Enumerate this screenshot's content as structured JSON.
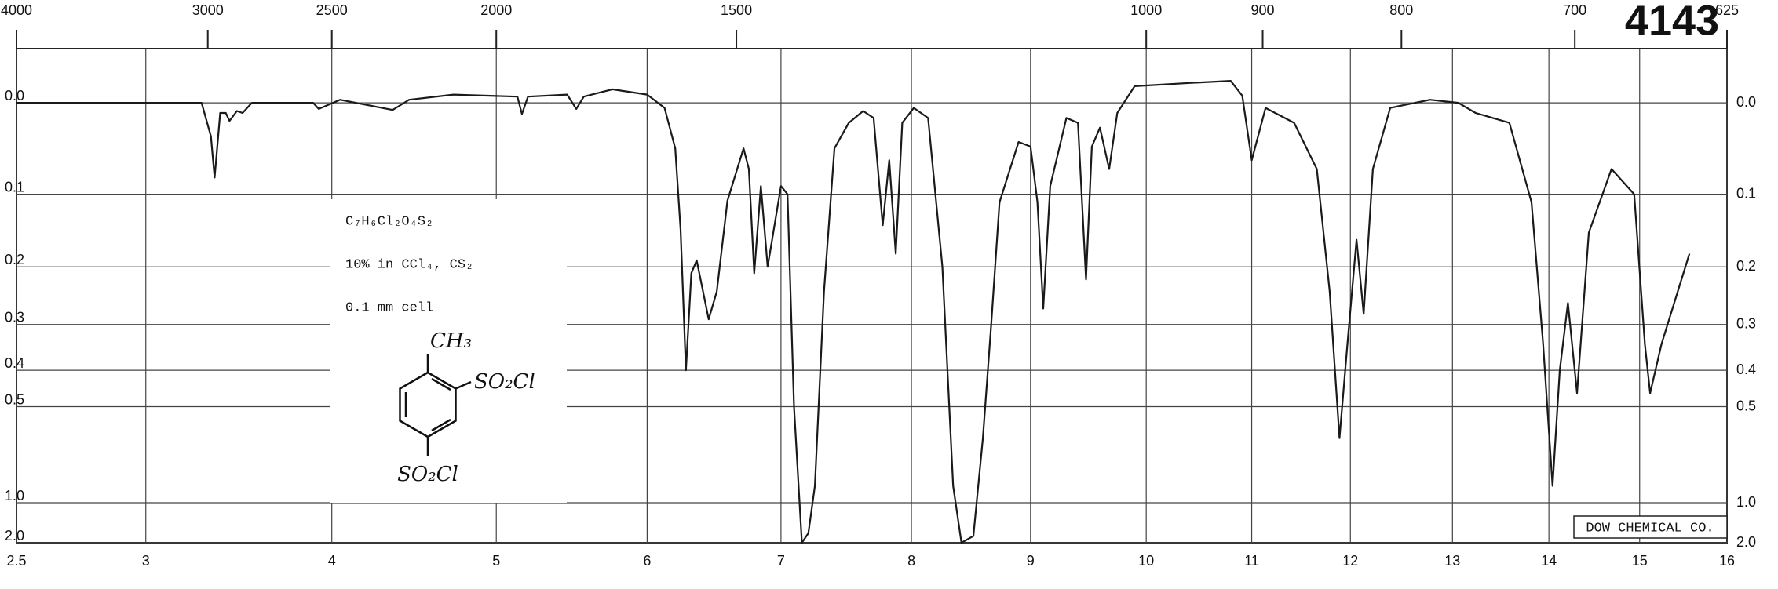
{
  "chart_data": {
    "type": "line",
    "x": [
      2.5,
      2.88,
      3.3,
      3.35,
      3.37,
      3.4,
      3.43,
      3.45,
      3.49,
      3.52,
      3.57,
      3.9,
      3.93,
      4.05,
      4.37,
      4.47,
      4.74,
      5.14,
      5.17,
      5.21,
      5.47,
      5.53,
      5.58,
      5.77,
      6.0,
      6.13,
      6.21,
      6.25,
      6.29,
      6.33,
      6.37,
      6.46,
      6.52,
      6.6,
      6.72,
      6.76,
      6.8,
      6.85,
      6.9,
      7.0,
      7.05,
      7.1,
      7.16,
      7.21,
      7.26,
      7.33,
      7.41,
      7.52,
      7.63,
      7.71,
      7.78,
      7.83,
      7.88,
      7.93,
      8.02,
      8.14,
      8.26,
      8.35,
      8.42,
      8.52,
      8.6,
      8.67,
      8.74,
      8.9,
      9.0,
      9.06,
      9.11,
      9.17,
      9.31,
      9.41,
      9.48,
      9.53,
      9.6,
      9.68,
      9.75,
      9.9,
      10.41,
      10.8,
      10.91,
      11.0,
      11.14,
      11.43,
      11.66,
      11.79,
      11.89,
      11.97,
      12.06,
      12.13,
      12.22,
      12.39,
      12.78,
      13.06,
      13.24,
      13.59,
      13.82,
      13.94,
      14.04,
      14.12,
      14.21,
      14.31,
      14.44,
      14.69,
      14.94,
      15.06,
      15.12,
      15.25,
      15.57
    ],
    "values": [
      0,
      0,
      0,
      0.034,
      0.08,
      0.01,
      0.01,
      0.018,
      0.008,
      0.01,
      0,
      0,
      0.006,
      -0.003,
      0.007,
      -0.003,
      -0.008,
      -0.006,
      0.011,
      -0.006,
      -0.008,
      0.006,
      -0.006,
      -0.013,
      -0.008,
      0.005,
      0.047,
      0.146,
      0.4,
      0.21,
      0.19,
      0.29,
      0.24,
      0.108,
      0.047,
      0.07,
      0.21,
      0.09,
      0.2,
      0.09,
      0.1,
      0.5,
      2.0,
      1.5,
      0.86,
      0.24,
      0.047,
      0.02,
      0.008,
      0.015,
      0.14,
      0.06,
      0.18,
      0.02,
      0.005,
      0.015,
      0.2,
      0.86,
      2.0,
      1.6,
      0.61,
      0.3,
      0.11,
      0.04,
      0.045,
      0.11,
      0.27,
      0.09,
      0.015,
      0.02,
      0.22,
      0.045,
      0.025,
      0.07,
      0.01,
      -0.016,
      -0.019,
      -0.021,
      -0.007,
      0.06,
      0.005,
      0.02,
      0.07,
      0.24,
      0.61,
      0.34,
      0.16,
      0.28,
      0.07,
      0.005,
      -0.003,
      0,
      0.01,
      0.02,
      0.11,
      0.34,
      0.86,
      0.4,
      0.26,
      0.46,
      0.15,
      0.07,
      0.1,
      0.34,
      0.46,
      0.34,
      0.18
    ],
    "color": "#1a1a1a",
    "xlim": [
      2.5,
      16
    ],
    "xticks": [
      2.5,
      3,
      4,
      5,
      6,
      7,
      8,
      9,
      10,
      11,
      12,
      13,
      14,
      15,
      16
    ],
    "x2ticks": [
      4000,
      3000,
      2500,
      2000,
      1500,
      1000,
      900,
      800,
      700,
      625
    ],
    "ylim": [
      -0.05,
      2
    ],
    "yscale": "transmittance",
    "yticks": [
      {
        "value": 0,
        "label": "0.0"
      },
      0.1,
      0.2,
      0.3,
      0.4,
      0.5,
      {
        "value": 1,
        "label": "1.0"
      },
      {
        "value": 2,
        "label": "2.0"
      }
    ],
    "grid": true,
    "annotations": {
      "spectrum_number": "4143",
      "formula": "C₇H₆Cl₂O₄S₂",
      "solution": "10% in CCl₄,  CS₂",
      "cell": "0.1 mm cell",
      "structure_top": "CH₃",
      "structure_side": "SO₂Cl",
      "structure_bottom": "SO₂Cl",
      "source": "DOW CHEMICAL CO."
    }
  }
}
